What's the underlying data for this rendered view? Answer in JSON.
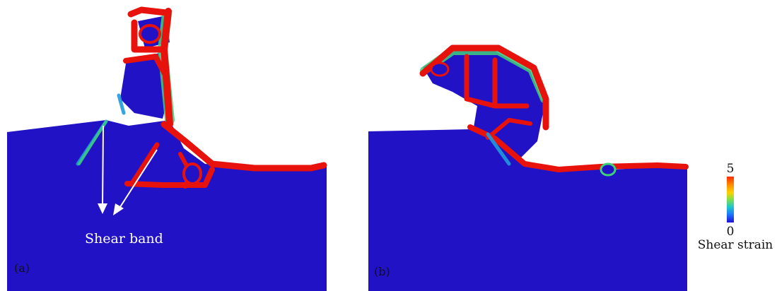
{
  "panels": [
    {
      "label": "(a)"
    },
    {
      "label": "(b)"
    }
  ],
  "annotation": {
    "text": "Shear band"
  },
  "colorbar": {
    "max_label": "5",
    "min_label": "0",
    "title": "Shear strain",
    "colors": [
      "#ff2a00",
      "#ff8c00",
      "#ffd200",
      "#7ee04a",
      "#1ec8c8",
      "#1e78ff",
      "#1f10d2"
    ]
  },
  "colors": {
    "material": "#2212c6",
    "material_dark": "#1e0fb8",
    "high_strain": "#e8120c",
    "mid_strain": "#3fd07a",
    "low_strain": "#1f9ad8"
  }
}
